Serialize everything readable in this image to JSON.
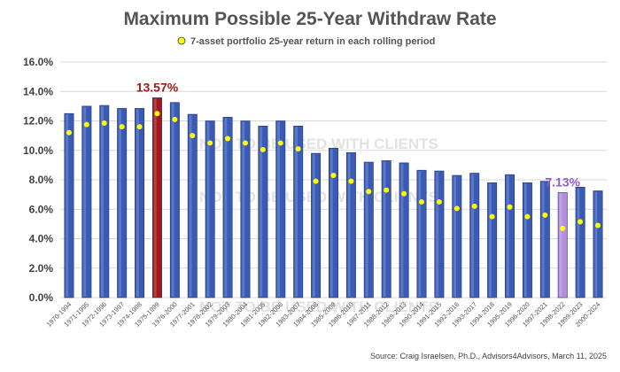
{
  "chart_data": {
    "type": "bar",
    "title": "Maximum Possible 25-Year Withdraw Rate",
    "legend": {
      "label": "7-asset portfolio 25-year return in each rolling period",
      "marker_color": "#ffff00",
      "placement": "top"
    },
    "categories": [
      "1970-1994",
      "1971-1995",
      "1972-1996",
      "1973-1997",
      "1974-1998",
      "1975-1999",
      "1976-2000",
      "1977-2001",
      "1978-2002",
      "1979-2003",
      "1980-2004",
      "1981-2005",
      "1982-2006",
      "1983-2007",
      "1984-2008",
      "1985-2009",
      "1986-2010",
      "1987-2011",
      "1988-2012",
      "1989-2013",
      "1990-2014",
      "1991-2015",
      "1992-2016",
      "1993-2017",
      "1994-2018",
      "1995-2019",
      "1996-2020",
      "1997-2021",
      "1998-2022",
      "1999-2023",
      "2000-2024"
    ],
    "series": [
      {
        "type": "bar",
        "values": [
          12.5,
          13.0,
          13.05,
          12.85,
          12.85,
          13.57,
          13.25,
          12.45,
          12.0,
          12.25,
          12.0,
          11.65,
          12.0,
          11.65,
          9.8,
          10.15,
          9.85,
          9.2,
          9.3,
          9.15,
          8.65,
          8.6,
          8.3,
          8.45,
          7.8,
          8.35,
          7.8,
          7.9,
          7.13,
          7.5,
          7.25
        ],
        "color": "#3a5bb5",
        "highlight": [
          {
            "index": 5,
            "color": "#a11a1a",
            "label": "13.57%",
            "label_color": "#a11a1a"
          },
          {
            "index": 28,
            "color": "#b48edc",
            "label": "7.13%",
            "label_color": "#8e5bc8"
          }
        ]
      },
      {
        "type": "scatter",
        "values": [
          11.2,
          11.75,
          11.85,
          11.6,
          11.6,
          12.5,
          12.1,
          11.0,
          10.5,
          10.8,
          10.5,
          10.05,
          10.5,
          10.1,
          7.9,
          8.3,
          7.9,
          7.2,
          7.3,
          7.05,
          6.5,
          6.5,
          6.05,
          6.2,
          5.5,
          6.15,
          5.5,
          5.6,
          4.7,
          5.15,
          4.9
        ],
        "color": "#ffff00"
      }
    ],
    "ylim": [
      0,
      16
    ],
    "yticks": [
      "0.0%",
      "2.0%",
      "4.0%",
      "6.0%",
      "8.0%",
      "10.0%",
      "12.0%",
      "14.0%",
      "16.0%"
    ],
    "grid": true,
    "watermarks": [
      "NOT TO BE USED WITH CLIENTS",
      "NOT TO BE USED WITH CLIENTS",
      "NOT TO BE USED WITH CLIENTS"
    ],
    "source": "Source: Craig Israelsen, Ph.D., Advisors4Advisors, March 11, 2025"
  }
}
